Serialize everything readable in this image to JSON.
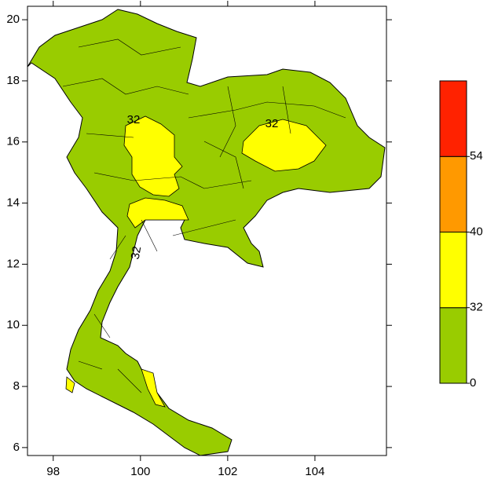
{
  "chart_data": {
    "type": "map",
    "xlim": [
      97.41,
      105.64
    ],
    "ylim": [
      5.74,
      20.44
    ],
    "xticks": [
      98,
      100,
      102,
      104
    ],
    "yticks": [
      6,
      8,
      10,
      12,
      14,
      16,
      18,
      20
    ],
    "colorbar": {
      "levels": [
        0,
        32,
        40,
        54
      ],
      "colors": [
        "#99cc00",
        "#ffff00",
        "#ff9900",
        "#ff2200"
      ]
    },
    "contour_labels": [
      "32",
      "32",
      "32"
    ]
  }
}
